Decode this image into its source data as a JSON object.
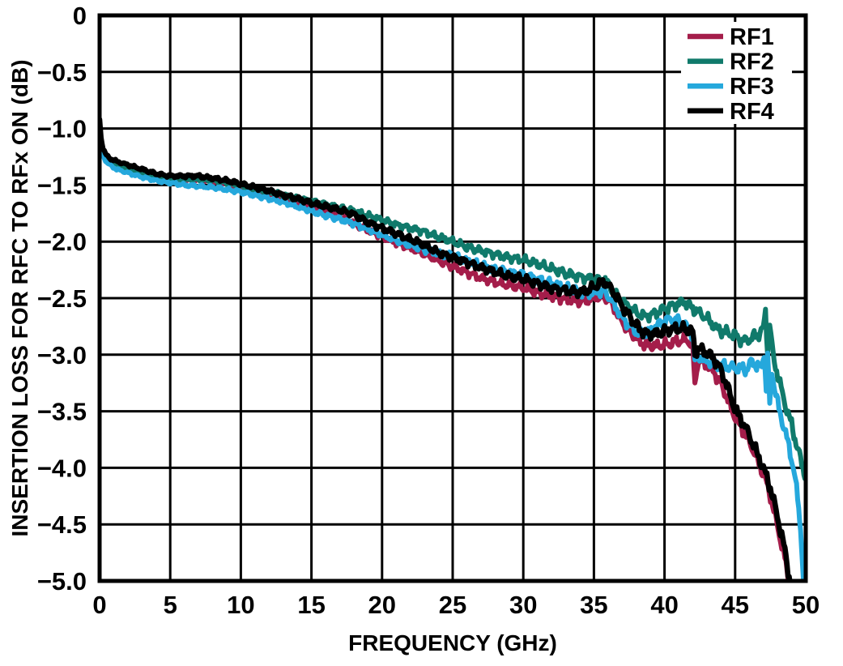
{
  "chart_data": {
    "type": "line",
    "title": "",
    "xlabel": "FREQUENCY (GHz)",
    "ylabel": "INSERTION LOSS FOR RFC TO RFx ON (dB)",
    "xlim": [
      0,
      50
    ],
    "ylim": [
      -5,
      0
    ],
    "x_ticks": [
      0,
      5,
      10,
      15,
      20,
      25,
      30,
      35,
      40,
      45,
      50
    ],
    "x_tick_labels": [
      "0",
      "5",
      "10",
      "15",
      "20",
      "25",
      "30",
      "35",
      "40",
      "45",
      "50"
    ],
    "y_ticks": [
      0,
      -0.5,
      -1.0,
      -1.5,
      -2.0,
      -2.5,
      -3.0,
      -3.5,
      -4.0,
      -4.5,
      -5.0
    ],
    "y_tick_labels": [
      "0",
      "−0.5",
      "−1.0",
      "−1.5",
      "−2.0",
      "−2.5",
      "−3.0",
      "−3.5",
      "−4.0",
      "−4.5",
      "−5.0"
    ],
    "grid": true,
    "grid_color": "#000000",
    "legend": {
      "position": "top-right-inside",
      "entries": [
        "RF1",
        "RF2",
        "RF3",
        "RF4"
      ]
    },
    "series": [
      {
        "name": "RF1",
        "color": "#A41D4A",
        "points": [
          [
            0,
            -0.94
          ],
          [
            0.1,
            -1.1
          ],
          [
            0.25,
            -1.21
          ],
          [
            0.5,
            -1.27
          ],
          [
            0.8,
            -1.3
          ],
          [
            1.2,
            -1.32
          ],
          [
            1.7,
            -1.34
          ],
          [
            2.2,
            -1.36
          ],
          [
            3,
            -1.39
          ],
          [
            4,
            -1.43
          ],
          [
            5,
            -1.45
          ],
          [
            6,
            -1.45
          ],
          [
            7,
            -1.45
          ],
          [
            8,
            -1.47
          ],
          [
            9,
            -1.49
          ],
          [
            10,
            -1.52
          ],
          [
            11,
            -1.55
          ],
          [
            12,
            -1.58
          ],
          [
            13,
            -1.62
          ],
          [
            14,
            -1.66
          ],
          [
            15,
            -1.7
          ],
          [
            16,
            -1.74
          ],
          [
            17,
            -1.78
          ],
          [
            18,
            -1.84
          ],
          [
            19,
            -1.9
          ],
          [
            20,
            -1.95
          ],
          [
            21,
            -2.01
          ],
          [
            22,
            -2.06
          ],
          [
            23,
            -2.11
          ],
          [
            24,
            -2.17
          ],
          [
            25,
            -2.22
          ],
          [
            26,
            -2.27
          ],
          [
            27,
            -2.32
          ],
          [
            28,
            -2.36
          ],
          [
            29,
            -2.39
          ],
          [
            30,
            -2.41
          ],
          [
            31,
            -2.45
          ],
          [
            32,
            -2.48
          ],
          [
            33,
            -2.51
          ],
          [
            34,
            -2.53
          ],
          [
            34.6,
            -2.52
          ],
          [
            35.2,
            -2.49
          ],
          [
            35.7,
            -2.48
          ],
          [
            36.2,
            -2.54
          ],
          [
            37,
            -2.71
          ],
          [
            37.7,
            -2.82
          ],
          [
            38.3,
            -2.89
          ],
          [
            38.8,
            -2.92
          ],
          [
            39.5,
            -2.92
          ],
          [
            40.2,
            -2.91
          ],
          [
            41,
            -2.88
          ],
          [
            41.6,
            -2.87
          ],
          [
            42,
            -2.92
          ],
          [
            42.15,
            -3.28
          ],
          [
            42.35,
            -3.06
          ],
          [
            42.8,
            -3.07
          ],
          [
            43.2,
            -3.11
          ],
          [
            43.6,
            -3.17
          ],
          [
            44,
            -3.26
          ],
          [
            44.4,
            -3.37
          ],
          [
            44.8,
            -3.5
          ],
          [
            45.2,
            -3.6
          ],
          [
            45.7,
            -3.7
          ],
          [
            46.2,
            -3.82
          ],
          [
            46.7,
            -3.97
          ],
          [
            47,
            -4.05
          ],
          [
            47.5,
            -4.25
          ],
          [
            47.9,
            -4.46
          ],
          [
            48.3,
            -4.68
          ],
          [
            48.6,
            -4.85
          ],
          [
            48.85,
            -5.05
          ],
          [
            48.95,
            -5.25
          ]
        ]
      },
      {
        "name": "RF2",
        "color": "#107A6B",
        "points": [
          [
            0,
            -0.94
          ],
          [
            0.1,
            -1.1
          ],
          [
            0.25,
            -1.21
          ],
          [
            0.5,
            -1.27
          ],
          [
            0.8,
            -1.3
          ],
          [
            1.2,
            -1.33
          ],
          [
            1.7,
            -1.35
          ],
          [
            2.2,
            -1.37
          ],
          [
            3,
            -1.4
          ],
          [
            4,
            -1.43
          ],
          [
            5,
            -1.44
          ],
          [
            6,
            -1.45
          ],
          [
            7,
            -1.45
          ],
          [
            8,
            -1.46
          ],
          [
            9,
            -1.48
          ],
          [
            10,
            -1.51
          ],
          [
            11,
            -1.54
          ],
          [
            12,
            -1.56
          ],
          [
            13,
            -1.59
          ],
          [
            14,
            -1.62
          ],
          [
            15,
            -1.64
          ],
          [
            16,
            -1.67
          ],
          [
            17,
            -1.7
          ],
          [
            18,
            -1.73
          ],
          [
            19,
            -1.77
          ],
          [
            20,
            -1.81
          ],
          [
            21,
            -1.85
          ],
          [
            22,
            -1.88
          ],
          [
            22.7,
            -1.9
          ],
          [
            23.4,
            -1.93
          ],
          [
            24,
            -1.96
          ],
          [
            25,
            -2.0
          ],
          [
            26,
            -2.05
          ],
          [
            27,
            -2.08
          ],
          [
            28,
            -2.11
          ],
          [
            29,
            -2.14
          ],
          [
            30,
            -2.16
          ],
          [
            31,
            -2.2
          ],
          [
            32,
            -2.24
          ],
          [
            33,
            -2.28
          ],
          [
            34,
            -2.31
          ],
          [
            35,
            -2.33
          ],
          [
            35.8,
            -2.34
          ],
          [
            36.5,
            -2.46
          ],
          [
            37.2,
            -2.55
          ],
          [
            38,
            -2.63
          ],
          [
            38.6,
            -2.66
          ],
          [
            39.2,
            -2.64
          ],
          [
            40,
            -2.59
          ],
          [
            40.7,
            -2.56
          ],
          [
            41.4,
            -2.53
          ],
          [
            42,
            -2.59
          ],
          [
            42.5,
            -2.63
          ],
          [
            43,
            -2.68
          ],
          [
            43.7,
            -2.77
          ],
          [
            44.3,
            -2.8
          ],
          [
            45,
            -2.83
          ],
          [
            45.6,
            -2.88
          ],
          [
            46.1,
            -2.86
          ],
          [
            46.6,
            -2.82
          ],
          [
            47,
            -2.77
          ],
          [
            47.15,
            -2.62
          ],
          [
            47.3,
            -2.97
          ],
          [
            47.45,
            -2.73
          ],
          [
            47.7,
            -3.02
          ],
          [
            48.1,
            -3.22
          ],
          [
            48.5,
            -3.42
          ],
          [
            49,
            -3.62
          ],
          [
            49.4,
            -3.82
          ],
          [
            49.8,
            -4.0
          ],
          [
            50,
            -4.08
          ]
        ]
      },
      {
        "name": "RF3",
        "color": "#25A8DC",
        "points": [
          [
            0,
            -0.96
          ],
          [
            0.1,
            -1.13
          ],
          [
            0.25,
            -1.24
          ],
          [
            0.5,
            -1.3
          ],
          [
            0.8,
            -1.33
          ],
          [
            1.2,
            -1.36
          ],
          [
            1.7,
            -1.38
          ],
          [
            2.2,
            -1.4
          ],
          [
            3,
            -1.43
          ],
          [
            4,
            -1.46
          ],
          [
            5,
            -1.48
          ],
          [
            6,
            -1.5
          ],
          [
            7,
            -1.51
          ],
          [
            8,
            -1.52
          ],
          [
            9,
            -1.54
          ],
          [
            10,
            -1.56
          ],
          [
            11,
            -1.59
          ],
          [
            12,
            -1.62
          ],
          [
            13,
            -1.65
          ],
          [
            14,
            -1.69
          ],
          [
            15,
            -1.73
          ],
          [
            16,
            -1.77
          ],
          [
            17,
            -1.8
          ],
          [
            18,
            -1.84
          ],
          [
            19,
            -1.89
          ],
          [
            20,
            -1.94
          ],
          [
            21,
            -1.99
          ],
          [
            22,
            -2.03
          ],
          [
            23,
            -2.07
          ],
          [
            24,
            -2.1
          ],
          [
            25,
            -2.12
          ],
          [
            26,
            -2.17
          ],
          [
            27,
            -2.21
          ],
          [
            28,
            -2.25
          ],
          [
            29,
            -2.27
          ],
          [
            30,
            -2.29
          ],
          [
            31,
            -2.33
          ],
          [
            32,
            -2.37
          ],
          [
            33,
            -2.41
          ],
          [
            34,
            -2.45
          ],
          [
            34.6,
            -2.46
          ],
          [
            35.2,
            -2.44
          ],
          [
            35.7,
            -2.44
          ],
          [
            36.2,
            -2.51
          ],
          [
            37,
            -2.67
          ],
          [
            37.7,
            -2.77
          ],
          [
            38.3,
            -2.82
          ],
          [
            38.9,
            -2.8
          ],
          [
            39.5,
            -2.74
          ],
          [
            40.2,
            -2.69
          ],
          [
            40.8,
            -2.69
          ],
          [
            41.4,
            -2.74
          ],
          [
            42,
            -2.82
          ],
          [
            42.15,
            -3.06
          ],
          [
            42.4,
            -3.01
          ],
          [
            42.8,
            -3.04
          ],
          [
            43.3,
            -3.07
          ],
          [
            44,
            -3.09
          ],
          [
            44.7,
            -3.11
          ],
          [
            45.3,
            -3.12
          ],
          [
            45.8,
            -3.13
          ],
          [
            46.2,
            -3.06
          ],
          [
            46.6,
            -3.1
          ],
          [
            46.9,
            -3.12
          ],
          [
            47.05,
            -2.96
          ],
          [
            47.2,
            -3.32
          ],
          [
            47.3,
            -2.98
          ],
          [
            47.45,
            -3.46
          ],
          [
            47.6,
            -3.13
          ],
          [
            47.8,
            -3.3
          ],
          [
            48.1,
            -3.48
          ],
          [
            48.5,
            -3.66
          ],
          [
            48.9,
            -3.86
          ],
          [
            49.2,
            -4.05
          ],
          [
            49.5,
            -4.35
          ],
          [
            49.7,
            -4.65
          ],
          [
            49.85,
            -5.05
          ],
          [
            49.9,
            -5.25
          ]
        ]
      },
      {
        "name": "RF4",
        "color": "#000000",
        "points": [
          [
            0,
            -0.92
          ],
          [
            0.1,
            -1.08
          ],
          [
            0.25,
            -1.18
          ],
          [
            0.5,
            -1.24
          ],
          [
            0.8,
            -1.27
          ],
          [
            1.2,
            -1.29
          ],
          [
            1.7,
            -1.31
          ],
          [
            2.2,
            -1.33
          ],
          [
            3,
            -1.36
          ],
          [
            4,
            -1.4
          ],
          [
            5,
            -1.42
          ],
          [
            6,
            -1.42
          ],
          [
            7,
            -1.42
          ],
          [
            8,
            -1.44
          ],
          [
            9,
            -1.46
          ],
          [
            10,
            -1.49
          ],
          [
            11,
            -1.52
          ],
          [
            12,
            -1.55
          ],
          [
            13,
            -1.59
          ],
          [
            14,
            -1.62
          ],
          [
            15,
            -1.66
          ],
          [
            16,
            -1.69
          ],
          [
            17,
            -1.72
          ],
          [
            18,
            -1.76
          ],
          [
            19,
            -1.83
          ],
          [
            20,
            -1.88
          ],
          [
            21,
            -1.93
          ],
          [
            22,
            -1.98
          ],
          [
            23,
            -2.03
          ],
          [
            24,
            -2.1
          ],
          [
            25,
            -2.14
          ],
          [
            26,
            -2.18
          ],
          [
            27,
            -2.23
          ],
          [
            28,
            -2.27
          ],
          [
            29,
            -2.31
          ],
          [
            30,
            -2.33
          ],
          [
            31,
            -2.37
          ],
          [
            32,
            -2.41
          ],
          [
            33,
            -2.43
          ],
          [
            34,
            -2.45
          ],
          [
            34.6,
            -2.43
          ],
          [
            35.3,
            -2.38
          ],
          [
            35.8,
            -2.36
          ],
          [
            36.3,
            -2.43
          ],
          [
            37,
            -2.57
          ],
          [
            37.7,
            -2.69
          ],
          [
            38.3,
            -2.78
          ],
          [
            38.8,
            -2.82
          ],
          [
            39.4,
            -2.81
          ],
          [
            40,
            -2.79
          ],
          [
            40.7,
            -2.77
          ],
          [
            41.4,
            -2.77
          ],
          [
            42,
            -2.8
          ],
          [
            42.15,
            -3.0
          ],
          [
            42.35,
            -2.94
          ],
          [
            42.8,
            -2.97
          ],
          [
            43.2,
            -3.0
          ],
          [
            43.6,
            -3.05
          ],
          [
            44,
            -3.14
          ],
          [
            44.4,
            -3.26
          ],
          [
            44.8,
            -3.42
          ],
          [
            45.2,
            -3.53
          ],
          [
            45.7,
            -3.63
          ],
          [
            46.2,
            -3.77
          ],
          [
            46.7,
            -3.92
          ],
          [
            47,
            -4.0
          ],
          [
            47.5,
            -4.18
          ],
          [
            47.9,
            -4.38
          ],
          [
            48.3,
            -4.6
          ],
          [
            48.6,
            -4.78
          ],
          [
            48.9,
            -5.02
          ],
          [
            49,
            -5.25
          ]
        ]
      }
    ]
  }
}
